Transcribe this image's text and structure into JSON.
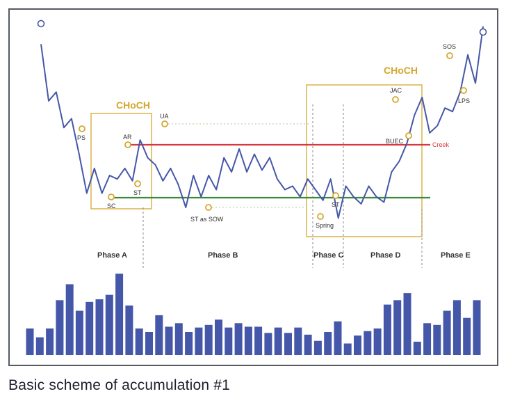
{
  "caption": "Basic scheme of accumulation #1",
  "chart_data": {
    "type": "line",
    "title": "",
    "xlabel": "",
    "ylabel": "",
    "grid": false,
    "choch_labels": [
      "CHoCH",
      "CHoCH"
    ],
    "creek_label": "Creek",
    "phases": [
      "Phase A",
      "Phase B",
      "Phase C",
      "Phase D",
      "Phase E"
    ],
    "points": [
      "PS",
      "SC",
      "AR",
      "ST",
      "UA",
      "ST as SOW",
      "Spring",
      "ST",
      "JAC",
      "BUEC",
      "SOS",
      "LPS"
    ],
    "price_series": {
      "name": "",
      "values": [
        92,
        60,
        65,
        45,
        50,
        30,
        8,
        22,
        8,
        18,
        16,
        22,
        15,
        38,
        28,
        24,
        15,
        22,
        13,
        0,
        18,
        6,
        18,
        10,
        28,
        20,
        33,
        20,
        30,
        21,
        28,
        16,
        10,
        12,
        6,
        16,
        10,
        4,
        16,
        -6,
        12,
        6,
        2,
        12,
        6,
        3,
        20,
        26,
        36,
        52,
        62,
        42,
        46,
        56,
        54,
        65,
        86,
        70,
        102
      ]
    },
    "volume_series": {
      "name": "",
      "values": [
        30,
        20,
        30,
        62,
        80,
        50,
        60,
        63,
        68,
        92,
        56,
        30,
        26,
        45,
        32,
        36,
        26,
        31,
        34,
        40,
        31,
        36,
        32,
        32,
        25,
        31,
        25,
        31,
        23,
        16,
        26,
        38,
        13,
        22,
        27,
        30,
        57,
        62,
        70,
        15,
        36,
        34,
        50,
        62,
        42,
        62
      ]
    }
  }
}
